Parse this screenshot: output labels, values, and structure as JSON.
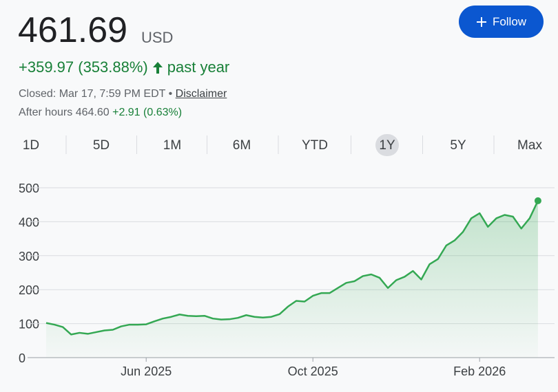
{
  "header": {
    "price": "461.69",
    "currency": "USD",
    "change": "+359.97 (353.88%)",
    "period": "past year",
    "closed": "Closed: Mar 17, 7:59 PM EDT",
    "separator": "•",
    "disclaimer": "Disclaimer",
    "after_hours": "After hours 464.60",
    "after_change": "+2.91 (0.63%)",
    "follow": "Follow"
  },
  "ranges": [
    "1D",
    "5D",
    "1M",
    "6M",
    "YTD",
    "1Y",
    "5Y",
    "Max"
  ],
  "selected_range": 5,
  "chart_data": {
    "type": "line",
    "color": "#34a853",
    "categories": [
      null,
      null,
      null,
      null,
      null,
      null,
      null,
      null,
      null,
      null,
      null,
      null,
      "Jun 2025",
      null,
      null,
      null,
      null,
      null,
      null,
      null,
      null,
      null,
      null,
      null,
      null,
      null,
      null,
      null,
      null,
      null,
      null,
      null,
      "Oct 2025",
      null,
      null,
      null,
      null,
      null,
      null,
      null,
      null,
      null,
      null,
      null,
      null,
      null,
      null,
      null,
      null,
      null,
      null,
      null,
      "Feb 2026",
      null,
      null,
      null,
      null,
      null,
      null,
      null
    ],
    "values": [
      102,
      97,
      90,
      68,
      73,
      70,
      75,
      80,
      82,
      92,
      97,
      97,
      98,
      107,
      115,
      120,
      127,
      123,
      122,
      123,
      115,
      112,
      113,
      117,
      125,
      120,
      118,
      120,
      128,
      150,
      167,
      165,
      182,
      190,
      190,
      205,
      220,
      225,
      240,
      245,
      235,
      205,
      228,
      238,
      255,
      230,
      275,
      290,
      330,
      345,
      370,
      410,
      425,
      385,
      410,
      420,
      415,
      380,
      410,
      461.69
    ],
    "ylim": [
      0,
      500
    ],
    "yticks": [
      0,
      100,
      200,
      300,
      400,
      500
    ],
    "grid": true
  }
}
